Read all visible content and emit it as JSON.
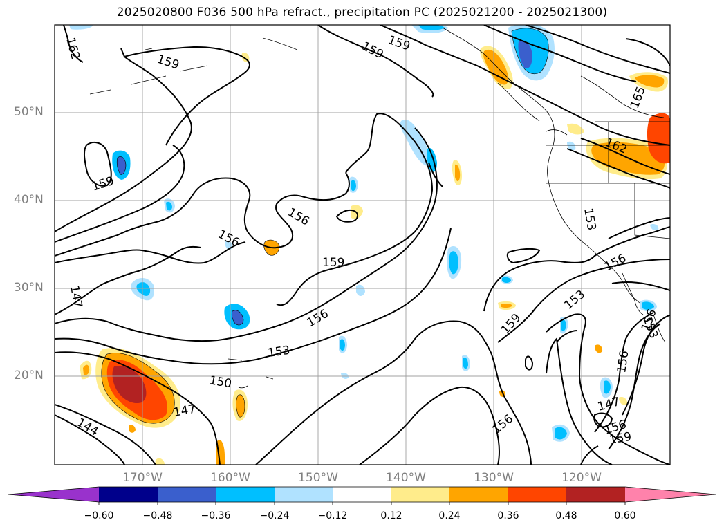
{
  "title": "2025020800 F036 500 hPa refract., precipitation PC (2025021200 - 2025021300)",
  "lat_labels": [
    "50°N",
    "40°N",
    "30°N",
    "20°N"
  ],
  "lon_labels": [
    "170°W",
    "160°W",
    "150°W",
    "140°W",
    "130°W",
    "120°W"
  ],
  "colorbar": {
    "ticks": [
      "−0.60",
      "−0.48",
      "−0.36",
      "−0.24",
      "−0.12",
      "0.12",
      "0.24",
      "0.36",
      "0.48",
      "0.60"
    ],
    "colors": [
      "#9932cc",
      "#00008b",
      "#3a5fcd",
      "#00bfff",
      "#b0e2ff",
      "#ffffff",
      "#ffec8b",
      "#ffa500",
      "#ff4500",
      "#b22222",
      "#ff82ab"
    ]
  },
  "contour_labels": [
    "159",
    "159",
    "159",
    "162",
    "165",
    "162",
    "159",
    "156",
    "156",
    "153",
    "159",
    "147",
    "156",
    "153",
    "150",
    "147",
    "144",
    "159",
    "153",
    "156",
    "156",
    "147",
    "156",
    "159",
    "156",
    "153",
    "156"
  ],
  "colors": {
    "grid": "#a0a0a0",
    "axis_label": "#808080",
    "contour": "#000000"
  }
}
